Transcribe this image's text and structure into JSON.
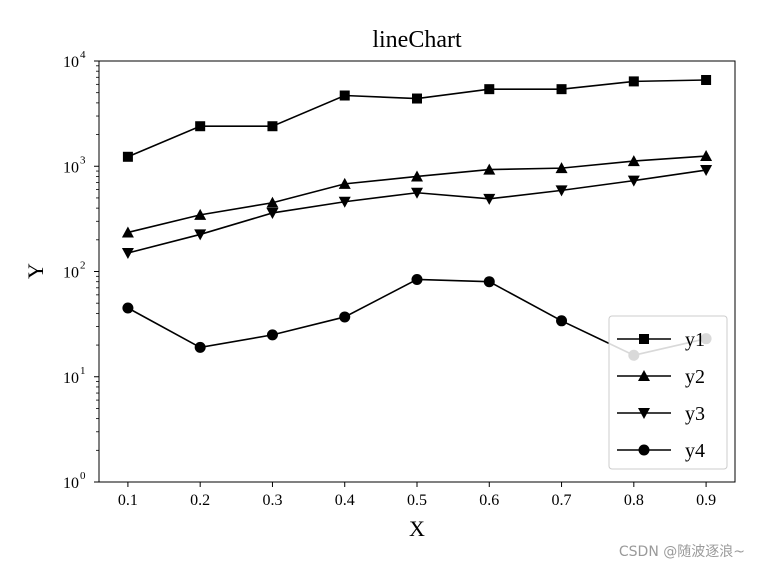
{
  "watermark": "CSDN @随波逐浪~",
  "chart_data": {
    "type": "line",
    "title": "lineChart",
    "xlabel": "X",
    "ylabel": "Y",
    "x": [
      0.1,
      0.2,
      0.3,
      0.4,
      0.5,
      0.6,
      0.7,
      0.8,
      0.9
    ],
    "x_ticks": [
      "0.1",
      "0.2",
      "0.3",
      "0.4",
      "0.5",
      "0.6",
      "0.7",
      "0.8",
      "0.9"
    ],
    "xlim": [
      0.06,
      0.94
    ],
    "yscale": "log",
    "ylim": [
      1,
      10000
    ],
    "y_ticks": [
      {
        "base": "10",
        "exp": "0",
        "value": 1
      },
      {
        "base": "10",
        "exp": "1",
        "value": 10
      },
      {
        "base": "10",
        "exp": "2",
        "value": 100
      },
      {
        "base": "10",
        "exp": "3",
        "value": 1000
      },
      {
        "base": "10",
        "exp": "4",
        "value": 10000
      }
    ],
    "grid": false,
    "legend_position": "lower right",
    "color": "#000000",
    "series": [
      {
        "name": "y1",
        "marker": "square",
        "values": [
          1230,
          2400,
          2400,
          4700,
          4400,
          5400,
          5400,
          6400,
          6600
        ]
      },
      {
        "name": "y2",
        "marker": "triangle-up",
        "values": [
          235,
          345,
          450,
          680,
          800,
          930,
          960,
          1120,
          1250
        ]
      },
      {
        "name": "y3",
        "marker": "triangle-down",
        "values": [
          150,
          225,
          360,
          460,
          560,
          490,
          590,
          730,
          920
        ]
      },
      {
        "name": "y4",
        "marker": "circle",
        "values": [
          45,
          19,
          25,
          37,
          84,
          80,
          34,
          16,
          23
        ]
      }
    ]
  }
}
